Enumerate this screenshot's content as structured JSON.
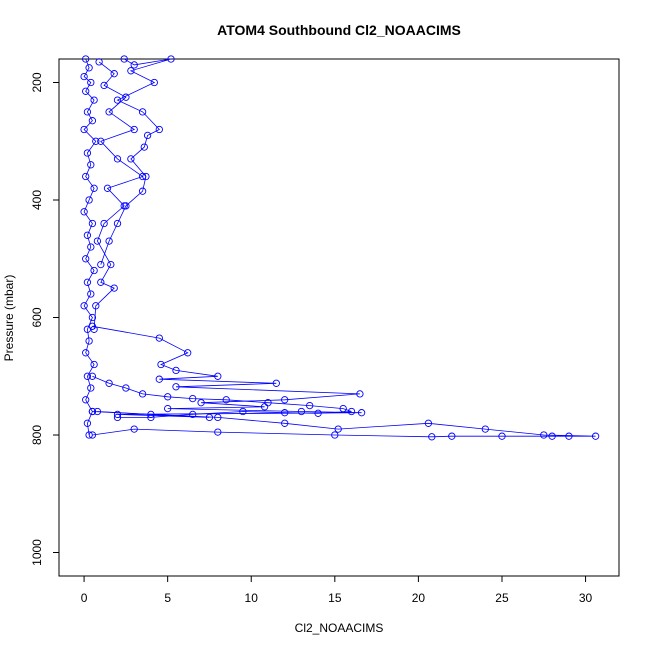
{
  "chart_data": {
    "type": "line",
    "title": "ATOM4 Southbound Cl2_NOAACIMS",
    "xlabel": "Cl2_NOAACIMS",
    "ylabel": "Pressure (mbar)",
    "xlim": [
      -1.5,
      32
    ],
    "ylim": [
      1040,
      160
    ],
    "y_inverted": true,
    "x_ticks": [
      0,
      5,
      10,
      15,
      20,
      25,
      30
    ],
    "y_ticks": [
      200,
      400,
      600,
      800,
      1000
    ],
    "grid": false,
    "color": "#0000ff",
    "marker": "open-circle",
    "series": [
      {
        "points": [
          [
            0.1,
            160
          ],
          [
            0.3,
            175
          ],
          [
            0.0,
            190
          ],
          [
            0.4,
            200
          ],
          [
            0.1,
            215
          ],
          [
            0.6,
            230
          ],
          [
            0.2,
            250
          ],
          [
            0.5,
            265
          ],
          [
            0.0,
            280
          ],
          [
            0.7,
            300
          ],
          [
            0.2,
            320
          ],
          [
            0.4,
            340
          ],
          [
            0.1,
            360
          ],
          [
            0.6,
            380
          ],
          [
            0.3,
            400
          ],
          [
            0.0,
            420
          ],
          [
            0.5,
            440
          ],
          [
            0.2,
            460
          ],
          [
            0.4,
            480
          ],
          [
            0.1,
            500
          ],
          [
            0.6,
            520
          ],
          [
            0.2,
            540
          ],
          [
            0.4,
            560
          ],
          [
            0.0,
            580
          ],
          [
            0.5,
            600
          ],
          [
            0.2,
            620
          ],
          [
            0.3,
            640
          ],
          [
            0.1,
            660
          ],
          [
            0.6,
            680
          ],
          [
            0.2,
            700
          ],
          [
            0.4,
            720
          ],
          [
            0.1,
            740
          ],
          [
            0.5,
            760
          ],
          [
            0.2,
            780
          ],
          [
            0.3,
            800
          ]
        ]
      },
      {
        "points": [
          [
            0.9,
            165
          ],
          [
            1.8,
            185
          ],
          [
            1.2,
            205
          ],
          [
            2.5,
            225
          ],
          [
            1.5,
            250
          ],
          [
            3.0,
            280
          ],
          [
            1.0,
            300
          ],
          [
            2.0,
            330
          ],
          [
            3.5,
            360
          ],
          [
            1.4,
            380
          ],
          [
            2.4,
            410
          ],
          [
            1.2,
            440
          ],
          [
            0.8,
            470
          ],
          [
            1.6,
            510
          ],
          [
            1.0,
            540
          ],
          [
            1.8,
            550
          ],
          [
            0.7,
            580
          ],
          [
            0.6,
            620
          ]
        ]
      },
      {
        "points": [
          [
            2.4,
            160
          ],
          [
            3.0,
            170
          ],
          [
            5.2,
            160
          ],
          [
            2.8,
            180
          ],
          [
            4.2,
            200
          ],
          [
            2.0,
            230
          ],
          [
            3.5,
            250
          ],
          [
            4.5,
            280
          ],
          [
            3.8,
            290
          ],
          [
            3.6,
            310
          ],
          [
            2.8,
            330
          ],
          [
            3.7,
            360
          ],
          [
            3.5,
            385
          ],
          [
            2.5,
            410
          ],
          [
            2.0,
            440
          ],
          [
            1.5,
            470
          ],
          [
            1.0,
            510
          ]
        ]
      },
      {
        "points": [
          [
            0.5,
            615
          ],
          [
            4.5,
            635
          ],
          [
            6.2,
            660
          ],
          [
            4.6,
            680
          ],
          [
            5.5,
            690
          ],
          [
            8.0,
            700
          ],
          [
            4.5,
            705
          ],
          [
            11.5,
            712
          ],
          [
            5.5,
            718
          ],
          [
            16.5,
            730
          ],
          [
            12.0,
            740
          ],
          [
            7.0,
            745
          ],
          [
            10.8,
            752
          ],
          [
            5.0,
            755
          ],
          [
            13.0,
            760
          ],
          [
            16.6,
            762
          ],
          [
            2.0,
            765
          ],
          [
            7.5,
            770
          ],
          [
            0.5,
            760
          ]
        ]
      },
      {
        "points": [
          [
            0.5,
            700
          ],
          [
            1.5,
            712
          ],
          [
            2.5,
            720
          ],
          [
            3.5,
            730
          ],
          [
            5.0,
            735
          ],
          [
            6.5,
            738
          ],
          [
            8.5,
            740
          ],
          [
            11.0,
            745
          ],
          [
            13.5,
            750
          ],
          [
            15.5,
            755
          ],
          [
            16.0,
            760
          ],
          [
            14.0,
            763
          ],
          [
            12.0,
            762
          ],
          [
            9.5,
            760
          ],
          [
            6.5,
            765
          ],
          [
            4.0,
            770
          ],
          [
            2.0,
            770
          ]
        ]
      },
      {
        "points": [
          [
            0.8,
            760
          ],
          [
            4.0,
            765
          ],
          [
            8.0,
            770
          ],
          [
            12.0,
            780
          ],
          [
            15.2,
            790
          ],
          [
            20.6,
            780
          ],
          [
            24.0,
            790
          ],
          [
            27.5,
            800
          ],
          [
            30.6,
            802
          ],
          [
            29.0,
            802
          ],
          [
            28.0,
            802
          ],
          [
            25.0,
            802
          ],
          [
            22.0,
            802
          ],
          [
            20.8,
            803
          ],
          [
            15.0,
            800
          ],
          [
            8.0,
            795
          ],
          [
            3.0,
            790
          ],
          [
            0.5,
            800
          ]
        ]
      }
    ]
  }
}
